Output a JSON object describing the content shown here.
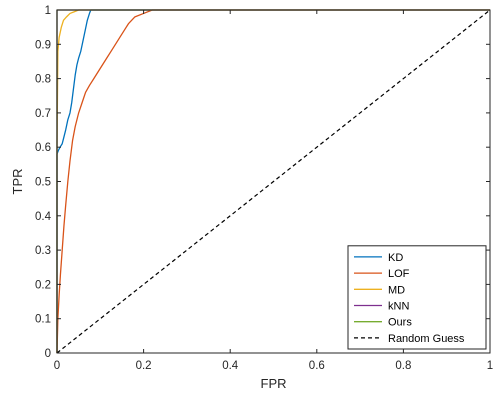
{
  "chart_data": {
    "type": "line",
    "xlabel": "FPR",
    "ylabel": "TPR",
    "xlim": [
      0,
      1
    ],
    "ylim": [
      0,
      1
    ],
    "xticks": [
      "0",
      "0.2",
      "0.4",
      "0.6",
      "0.8",
      "1"
    ],
    "yticks": [
      "0",
      "0.1",
      "0.2",
      "0.3",
      "0.4",
      "0.5",
      "0.6",
      "0.7",
      "0.8",
      "0.9",
      "1"
    ],
    "grid": false,
    "legend_position": "bottom-right",
    "series": [
      {
        "name": "KD",
        "color": "#0072BD",
        "style": "solid",
        "points": [
          [
            0,
            0
          ],
          [
            0,
            0.58
          ],
          [
            0.003,
            0.59
          ],
          [
            0.007,
            0.6
          ],
          [
            0.012,
            0.61
          ],
          [
            0.016,
            0.63
          ],
          [
            0.02,
            0.65
          ],
          [
            0.025,
            0.68
          ],
          [
            0.03,
            0.7
          ],
          [
            0.034,
            0.73
          ],
          [
            0.038,
            0.77
          ],
          [
            0.042,
            0.81
          ],
          [
            0.046,
            0.84
          ],
          [
            0.05,
            0.86
          ],
          [
            0.055,
            0.88
          ],
          [
            0.06,
            0.91
          ],
          [
            0.065,
            0.94
          ],
          [
            0.07,
            0.97
          ],
          [
            0.075,
            0.99
          ],
          [
            0.078,
            1.0
          ],
          [
            1.0,
            1.0
          ]
        ]
      },
      {
        "name": "LOF",
        "color": "#D95319",
        "style": "solid",
        "points": [
          [
            0,
            0
          ],
          [
            0.002,
            0.1
          ],
          [
            0.005,
            0.17
          ],
          [
            0.008,
            0.23
          ],
          [
            0.012,
            0.3
          ],
          [
            0.016,
            0.37
          ],
          [
            0.02,
            0.43
          ],
          [
            0.025,
            0.5
          ],
          [
            0.03,
            0.56
          ],
          [
            0.036,
            0.62
          ],
          [
            0.042,
            0.66
          ],
          [
            0.05,
            0.7
          ],
          [
            0.058,
            0.73
          ],
          [
            0.066,
            0.76
          ],
          [
            0.075,
            0.78
          ],
          [
            0.085,
            0.8
          ],
          [
            0.095,
            0.82
          ],
          [
            0.105,
            0.84
          ],
          [
            0.115,
            0.86
          ],
          [
            0.125,
            0.88
          ],
          [
            0.135,
            0.9
          ],
          [
            0.145,
            0.92
          ],
          [
            0.155,
            0.94
          ],
          [
            0.165,
            0.96
          ],
          [
            0.18,
            0.98
          ],
          [
            0.2,
            0.99
          ],
          [
            0.22,
            1.0
          ],
          [
            0.23,
            1.0
          ],
          [
            1.0,
            1.0
          ]
        ]
      },
      {
        "name": "MD",
        "color": "#EDB120",
        "style": "solid",
        "points": [
          [
            0,
            0
          ],
          [
            0,
            0.6
          ],
          [
            0.002,
            0.88
          ],
          [
            0.005,
            0.92
          ],
          [
            0.01,
            0.95
          ],
          [
            0.015,
            0.97
          ],
          [
            0.022,
            0.98
          ],
          [
            0.03,
            0.99
          ],
          [
            0.04,
            0.995
          ],
          [
            0.05,
            1.0
          ],
          [
            1.0,
            1.0
          ]
        ]
      },
      {
        "name": "kNN",
        "color": "#7E2F8E",
        "style": "solid",
        "points": [
          [
            0,
            0
          ],
          [
            0,
            1.0
          ],
          [
            1.0,
            1.0
          ]
        ]
      },
      {
        "name": "Ours",
        "color": "#77AC30",
        "style": "solid",
        "points": [
          [
            0,
            0
          ],
          [
            0,
            1.0
          ],
          [
            1.0,
            1.0
          ]
        ]
      },
      {
        "name": "Random Guess",
        "color": "#000000",
        "style": "dashed",
        "points": [
          [
            0,
            0
          ],
          [
            1,
            1
          ]
        ]
      }
    ]
  }
}
